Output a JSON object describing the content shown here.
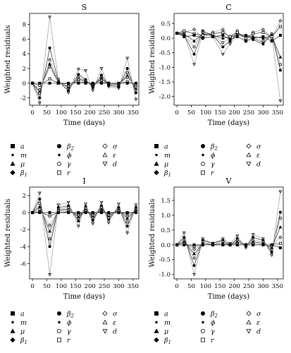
{
  "chart_data": [
    {
      "type": "line",
      "title": "S",
      "xlabel": "Time (days)",
      "ylabel": "Weighted residuals",
      "xlim": [
        -10,
        370
      ],
      "ylim": [
        -3,
        9.5
      ],
      "xticks": [
        0,
        50,
        100,
        150,
        200,
        250,
        300,
        350
      ],
      "yticks": [
        -2,
        0,
        2,
        4,
        6,
        8
      ],
      "x": [
        0,
        25,
        60,
        90,
        125,
        160,
        185,
        210,
        240,
        265,
        300,
        330,
        360
      ],
      "series": [
        {
          "values": [
            0,
            -2.7,
            9.0,
            0.5,
            -1.3,
            1.9,
            1.7,
            -1.0,
            2.0,
            -0.5,
            -0.7,
            3.4,
            -2.2
          ]
        },
        {
          "values": [
            0,
            -2.0,
            4.8,
            0.3,
            -1.0,
            1.2,
            0.5,
            -0.6,
            1.1,
            -0.3,
            -0.5,
            2.0,
            -1.3
          ]
        },
        {
          "values": [
            0,
            -1.4,
            3.2,
            0.2,
            -0.6,
            0.8,
            0.4,
            -0.4,
            0.7,
            -0.2,
            -0.3,
            1.4,
            -0.9
          ]
        },
        {
          "values": [
            0,
            -1.1,
            2.6,
            0.1,
            -0.5,
            0.6,
            0.3,
            -0.3,
            0.6,
            -0.1,
            -0.2,
            1.0,
            -0.7
          ]
        },
        {
          "values": [
            0,
            -0.9,
            2.2,
            0.1,
            -0.4,
            0.5,
            0.2,
            -0.2,
            0.4,
            -0.1,
            -0.2,
            0.8,
            -0.5
          ]
        },
        {
          "values": [
            0,
            -0.3,
            0.6,
            0.0,
            -0.1,
            0.2,
            0.1,
            -0.1,
            0.1,
            0.0,
            -0.1,
            0.2,
            -0.2
          ]
        },
        {
          "values": [
            0,
            0.0,
            0.0,
            0.0,
            0.0,
            0.0,
            0.0,
            0.0,
            0.0,
            0.0,
            0.0,
            0.0,
            0.0
          ]
        }
      ],
      "legend_placement": "below"
    },
    {
      "type": "line",
      "title": "C",
      "xlabel": "Time (days)",
      "ylabel": "Weighted residuals",
      "xlim": [
        -10,
        370
      ],
      "ylim": [
        -2.3,
        0.85
      ],
      "xticks": [
        0,
        50,
        100,
        150,
        200,
        250,
        300,
        350
      ],
      "yticks": [
        -2.0,
        -1.5,
        -1.0,
        -0.5,
        0.0,
        0.5
      ],
      "x": [
        0,
        25,
        60,
        90,
        125,
        160,
        185,
        210,
        240,
        265,
        300,
        330,
        360
      ],
      "series": [
        {
          "values": [
            0.17,
            0.15,
            -0.9,
            0.2,
            0.05,
            -0.55,
            -0.2,
            0.1,
            0.05,
            0.0,
            -0.15,
            0.1,
            -2.15
          ]
        },
        {
          "values": [
            0.17,
            0.1,
            -0.55,
            0.25,
            0.1,
            -0.3,
            -0.1,
            0.15,
            0.1,
            -0.05,
            -0.2,
            0.15,
            -1.1
          ]
        },
        {
          "values": [
            0.17,
            0.12,
            -0.3,
            0.2,
            0.1,
            -0.15,
            0.0,
            0.15,
            0.1,
            0.0,
            -0.1,
            0.15,
            -0.9
          ]
        },
        {
          "values": [
            0.17,
            0.15,
            -0.1,
            0.15,
            0.1,
            0.0,
            0.05,
            0.1,
            0.1,
            0.05,
            0.0,
            0.1,
            -0.65
          ]
        },
        {
          "values": [
            0.17,
            0.2,
            0.3,
            0.0,
            0.2,
            0.3,
            0.0,
            0.25,
            -0.1,
            0.2,
            0.3,
            0.0,
            0.6
          ]
        },
        {
          "values": [
            0.17,
            0.25,
            0.15,
            0.1,
            0.15,
            0.2,
            0.05,
            0.2,
            0.0,
            0.15,
            0.2,
            0.05,
            0.4
          ]
        },
        {
          "values": [
            0.17,
            0.05,
            0.1,
            0.0,
            0.05,
            0.1,
            -0.05,
            0.05,
            -0.1,
            0.0,
            0.05,
            -0.1,
            0.1
          ]
        }
      ],
      "legend_placement": "below"
    },
    {
      "type": "line",
      "title": "I",
      "xlabel": "Time (days)",
      "ylabel": "Weighted residuals",
      "xlim": [
        -10,
        370
      ],
      "ylim": [
        -7.8,
        3
      ],
      "xticks": [
        0,
        50,
        100,
        150,
        200,
        250,
        300,
        350
      ],
      "yticks": [
        -6,
        -4,
        -2,
        0,
        2
      ],
      "x": [
        0,
        25,
        60,
        90,
        125,
        160,
        185,
        210,
        240,
        265,
        300,
        330,
        360
      ],
      "series": [
        {
          "values": [
            0,
            2.3,
            -7.3,
            0.9,
            1.2,
            -1.6,
            1.0,
            -1.3,
            1.2,
            -1.2,
            1.0,
            -2.4,
            0.9
          ]
        },
        {
          "values": [
            0,
            1.6,
            -4.0,
            0.6,
            0.8,
            -1.0,
            0.7,
            -0.9,
            0.8,
            -0.8,
            0.6,
            -1.6,
            0.6
          ]
        },
        {
          "values": [
            0,
            1.1,
            -3.1,
            0.4,
            0.6,
            -0.7,
            0.5,
            -0.6,
            0.6,
            -0.6,
            0.4,
            -1.1,
            0.4
          ]
        },
        {
          "values": [
            0,
            0.7,
            -2.2,
            0.3,
            0.4,
            -0.5,
            0.3,
            -0.4,
            0.4,
            -0.4,
            0.3,
            -0.7,
            0.3
          ]
        },
        {
          "values": [
            0,
            0.4,
            -1.5,
            0.2,
            0.3,
            -0.3,
            0.2,
            -0.3,
            0.2,
            -0.3,
            0.2,
            -0.4,
            0.2
          ]
        },
        {
          "values": [
            0,
            0.1,
            -0.4,
            0.0,
            0.1,
            -0.1,
            0.0,
            -0.1,
            0.1,
            -0.1,
            0.0,
            -0.1,
            0.1
          ]
        },
        {
          "values": [
            0,
            0.0,
            0.0,
            0.0,
            0.0,
            0.0,
            0.0,
            0.0,
            0.0,
            0.0,
            0.0,
            0.0,
            0.0
          ]
        }
      ],
      "legend_placement": "below"
    },
    {
      "type": "line",
      "title": "V",
      "xlabel": "Time (days)",
      "ylabel": "Weighted residuals",
      "xlim": [
        -10,
        370
      ],
      "ylim": [
        -1.15,
        1.95
      ],
      "xticks": [
        0,
        50,
        100,
        150,
        200,
        250,
        300,
        350
      ],
      "yticks": [
        -1.0,
        -0.5,
        0.0,
        0.5,
        1.0,
        1.5
      ],
      "x": [
        0,
        25,
        60,
        90,
        125,
        160,
        185,
        210,
        240,
        265,
        300,
        330,
        360
      ],
      "series": [
        {
          "values": [
            0,
            0.4,
            -1.0,
            0.2,
            0.05,
            0.2,
            0.05,
            0.3,
            -0.1,
            0.35,
            0.2,
            -0.35,
            1.8
          ]
        },
        {
          "values": [
            0,
            0.25,
            -0.7,
            0.15,
            0.05,
            0.15,
            0.0,
            0.2,
            -0.05,
            0.25,
            0.15,
            -0.25,
            1.1
          ]
        },
        {
          "values": [
            0,
            0.15,
            -0.45,
            0.1,
            0.0,
            0.1,
            0.0,
            0.15,
            0.0,
            0.15,
            0.1,
            -0.15,
            0.9
          ]
        },
        {
          "values": [
            0,
            0.1,
            -0.3,
            0.05,
            0.0,
            0.05,
            0.0,
            0.1,
            0.0,
            0.1,
            0.05,
            -0.1,
            0.6
          ]
        },
        {
          "values": [
            0,
            0.05,
            -0.15,
            0.0,
            0.0,
            0.0,
            0.0,
            0.05,
            0.0,
            0.05,
            0.0,
            -0.05,
            0.25
          ]
        },
        {
          "values": [
            0,
            0.0,
            -0.05,
            0.0,
            0.0,
            0.0,
            0.0,
            0.0,
            0.0,
            0.0,
            0.0,
            0.0,
            0.05
          ]
        },
        {
          "values": [
            0,
            0.0,
            0.0,
            0.0,
            0.0,
            0.0,
            0.0,
            0.0,
            0.0,
            0.0,
            0.0,
            0.0,
            -0.1
          ]
        }
      ],
      "legend_placement": "below"
    }
  ],
  "legend_entries": [
    {
      "symbol": "square",
      "label": "a"
    },
    {
      "symbol": "circle",
      "label": "β",
      "sub": "2"
    },
    {
      "symbol": "diamond-open",
      "label": "σ"
    },
    {
      "symbol": "circle-small",
      "label": "m"
    },
    {
      "symbol": "circle-small",
      "label": "ϕ"
    },
    {
      "symbol": "triangle-open",
      "label": "ε"
    },
    {
      "symbol": "triangle",
      "label": "μ"
    },
    {
      "symbol": "circle-open",
      "label": "γ"
    },
    {
      "symbol": "triangle-down-open",
      "label": "d"
    },
    {
      "symbol": "diamond",
      "label": "β",
      "sub": "1"
    },
    {
      "symbol": "square-open",
      "label": "r"
    }
  ],
  "colors": {
    "line_dark": "#222222",
    "line_light": "#9a9a9a",
    "axis": "#000000"
  }
}
